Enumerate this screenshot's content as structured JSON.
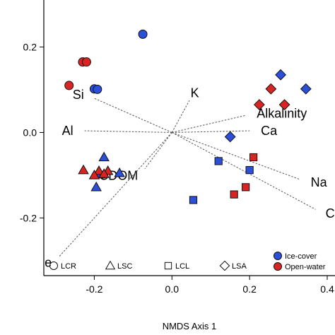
{
  "chart_data": {
    "type": "scatter",
    "xlabel": "NMDS Axis 1",
    "ylabel": "",
    "xlim": [
      -0.33,
      0.42
    ],
    "ylim": [
      -0.335,
      0.31
    ],
    "x_ticks": [
      {
        "value": -0.2,
        "label": "-0.2"
      },
      {
        "value": 0.0,
        "label": "0.0"
      },
      {
        "value": 0.2,
        "label": "0.2"
      },
      {
        "value": 0.4,
        "label": "0.4"
      }
    ],
    "y_ticks": [
      {
        "value": -0.2,
        "label": "-0.2"
      },
      {
        "value": 0.0,
        "label": "0.0"
      },
      {
        "value": 0.2,
        "label": "0.2"
      }
    ],
    "grid": false,
    "colors": {
      "ice_cover": "#2b4fd8",
      "open_water": "#d92424"
    },
    "vectors": [
      {
        "label": "Si",
        "x": -0.2,
        "y": 0.08
      },
      {
        "label": "K",
        "x": 0.045,
        "y": 0.075
      },
      {
        "label": "Alkalinity",
        "x": 0.19,
        "y": 0.04
      },
      {
        "label": "Al",
        "x": -0.225,
        "y": 0.004
      },
      {
        "label": "Ca",
        "x": 0.2,
        "y": 0.004
      },
      {
        "label": "Na",
        "x": 0.33,
        "y": -0.11
      },
      {
        "label": "CDOM",
        "x": -0.07,
        "y": -0.085
      },
      {
        "label": "Cl",
        "x": 0.37,
        "y": -0.18
      },
      {
        "label": "Fe",
        "x": -0.29,
        "y": -0.29
      }
    ],
    "series": [
      {
        "site": "LCR",
        "season": "ice_cover",
        "points": [
          [
            -0.075,
            0.23
          ],
          [
            -0.2,
            0.102
          ],
          [
            -0.192,
            0.101
          ]
        ]
      },
      {
        "site": "LCR",
        "season": "open_water",
        "points": [
          [
            -0.23,
            0.165
          ],
          [
            -0.22,
            0.165
          ],
          [
            -0.265,
            0.11
          ]
        ]
      },
      {
        "site": "LSC",
        "season": "ice_cover",
        "points": [
          [
            -0.175,
            -0.058
          ],
          [
            -0.185,
            -0.098
          ],
          [
            -0.135,
            -0.095
          ],
          [
            -0.195,
            -0.128
          ]
        ]
      },
      {
        "site": "LSC",
        "season": "open_water",
        "points": [
          [
            -0.228,
            -0.088
          ],
          [
            -0.188,
            -0.09
          ],
          [
            -0.165,
            -0.09
          ],
          [
            -0.2,
            -0.1
          ],
          [
            -0.175,
            -0.097
          ]
        ]
      },
      {
        "site": "LCL",
        "season": "ice_cover",
        "points": [
          [
            0.12,
            -0.067
          ],
          [
            0.2,
            -0.088
          ],
          [
            0.055,
            -0.158
          ]
        ]
      },
      {
        "site": "LCL",
        "season": "open_water",
        "points": [
          [
            0.21,
            -0.058
          ],
          [
            0.19,
            -0.128
          ],
          [
            0.16,
            -0.145
          ]
        ]
      },
      {
        "site": "LSA",
        "season": "ice_cover",
        "points": [
          [
            0.28,
            0.135
          ],
          [
            0.345,
            0.102
          ],
          [
            0.15,
            -0.01
          ]
        ]
      },
      {
        "site": "LSA",
        "season": "open_water",
        "points": [
          [
            0.255,
            0.102
          ],
          [
            0.29,
            0.065
          ],
          [
            0.225,
            0.065
          ]
        ]
      }
    ],
    "legend_shapes": {
      "location": "bottom",
      "entries": [
        {
          "site": "LCR",
          "label": "LCR"
        },
        {
          "site": "LSC",
          "label": "LSC"
        },
        {
          "site": "LCL",
          "label": "LCL"
        },
        {
          "site": "LSA",
          "label": "LSA"
        }
      ]
    },
    "legend_colors": {
      "location": "bottom-right",
      "entries": [
        {
          "season": "ice_cover",
          "label": "Ice-cover"
        },
        {
          "season": "open_water",
          "label": "Open-water"
        }
      ]
    }
  }
}
